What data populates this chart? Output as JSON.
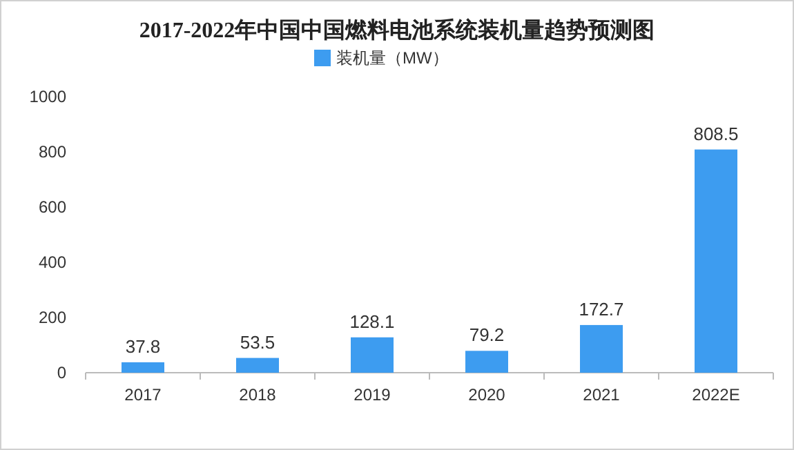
{
  "chart_data": {
    "type": "bar",
    "title": "2017-2022年中国中国燃料电池系统装机量趋势预测图",
    "categories": [
      "2017",
      "2018",
      "2019",
      "2020",
      "2021",
      "2022E"
    ],
    "series": [
      {
        "name": "装机量（MW）",
        "color": "#3d9cf0",
        "values": [
          37.8,
          53.5,
          128.1,
          79.2,
          172.7,
          808.5
        ]
      }
    ],
    "ylim": [
      0,
      1000
    ],
    "yticks": [
      0,
      200,
      400,
      600,
      800,
      1000
    ],
    "data_labels": true,
    "legend": "top",
    "grid": false
  }
}
